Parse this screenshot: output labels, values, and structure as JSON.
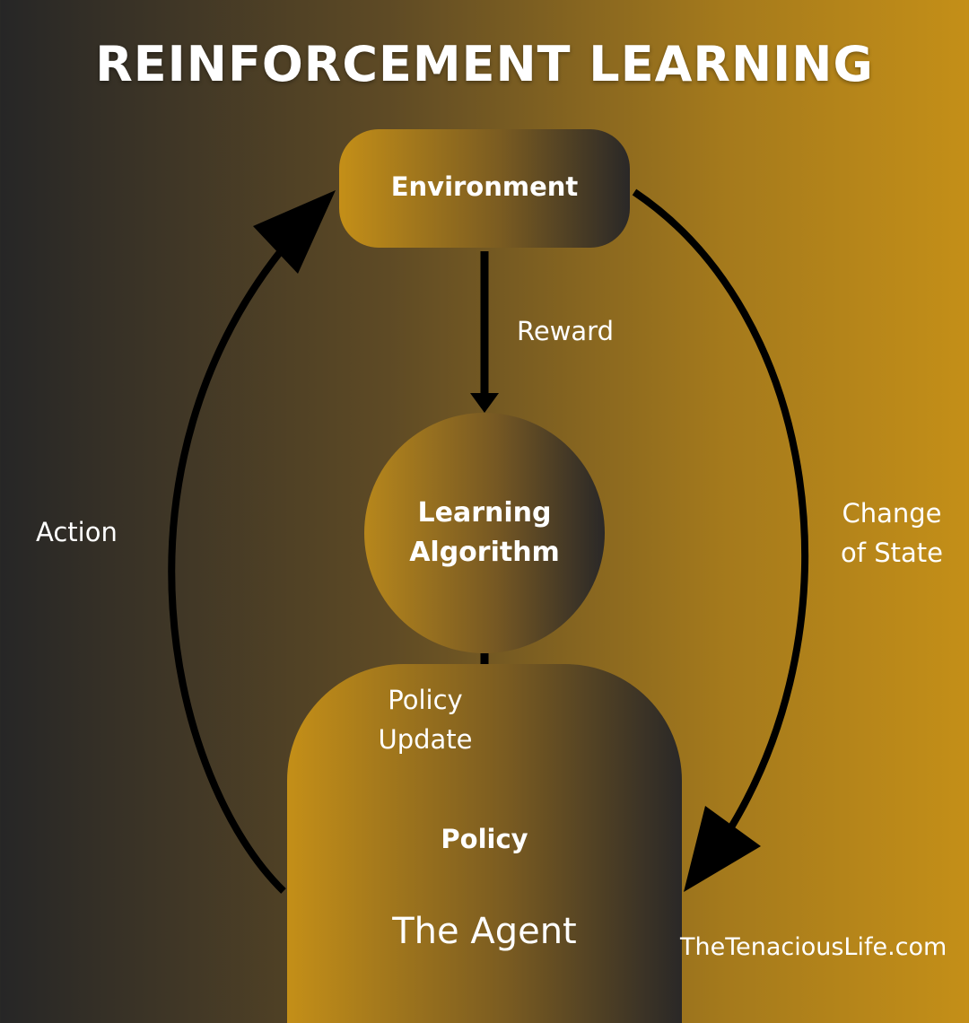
{
  "title": "REINFORCEMENT LEARNING",
  "nodes": {
    "environment": "Environment",
    "learning_algorithm": "Learning Algorithm",
    "policy": "Policy",
    "agent": "The Agent"
  },
  "edges": {
    "reward": "Reward",
    "policy_update": "Policy Update",
    "action": "Action",
    "change_of_state": "Change of State"
  },
  "footer": "TheTenaciousLife.com",
  "colors": {
    "background_dark": "#262626",
    "background_gold": "#c48f18",
    "text": "#ffffff",
    "arrow": "#000000"
  }
}
